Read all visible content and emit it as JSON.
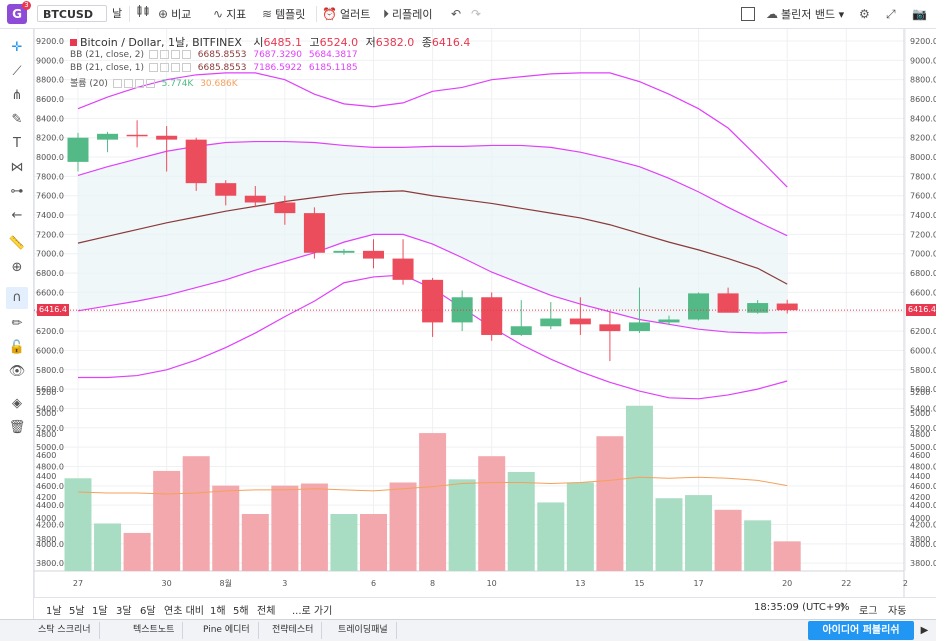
{
  "topbar": {
    "avatar_letter": "G",
    "avatar_badge": "3",
    "symbol": "BTCUSD",
    "interval": "날",
    "compare": "비교",
    "indicators": "지표",
    "templates": "템플릿",
    "alert": "얼러트",
    "replay": "리플레이",
    "bollinger": "볼린저 밴드"
  },
  "legend": {
    "main_title": "Bitcoin / Dollar, 1날, BITFINEX",
    "open_label": "시",
    "open": "6485.1",
    "high_label": "고",
    "high": "6524.0",
    "low_label": "저",
    "low": "6382.0",
    "close_label": "종",
    "close": "6416.4",
    "bb2_name": "BB (21, close, 2)",
    "bb2_basis": "6685.8553",
    "bb2_upper": "7687.3290",
    "bb2_lower": "5684.3817",
    "bb1_name": "BB (21, close, 1)",
    "bb1_basis": "6685.8553",
    "bb1_upper": "7186.5922",
    "bb1_lower": "6185.1185",
    "vol_name": "볼륨 (20)",
    "vol_value": "5.774K",
    "vol_ma": "30.686K"
  },
  "price_tag": "6416.4",
  "colors": {
    "up": "#53b987",
    "down": "#eb4d5c",
    "bb_outer": "#e040fb",
    "bb_basis": "#8b3a3a",
    "vol_ma": "#f5a05a",
    "accent": "#2196f3"
  },
  "chart_data": {
    "type": "candlestick",
    "price_axis": [
      "9200.0",
      "9000.0",
      "8800.0",
      "8600.0",
      "8400.0",
      "8200.0",
      "8000.0",
      "7800.0",
      "7600.0",
      "7400.0",
      "7200.0",
      "7000.0",
      "6800.0",
      "6600.0",
      "6400.0",
      "6200.0",
      "6000.0",
      "5800.0",
      "5600.0",
      "5400.0",
      "5200.0",
      "5000.0",
      "4800.0",
      "4600.0",
      "4400.0",
      "4200.0",
      "4000.0",
      "3800.0"
    ],
    "x_ticks": [
      {
        "label": "27",
        "i": 0
      },
      {
        "label": "30",
        "i": 3
      },
      {
        "label": "8월",
        "i": 5
      },
      {
        "label": "3",
        "i": 7
      },
      {
        "label": "6",
        "i": 10
      },
      {
        "label": "8",
        "i": 12
      },
      {
        "label": "10",
        "i": 14
      },
      {
        "label": "13",
        "i": 17
      },
      {
        "label": "15",
        "i": 19
      },
      {
        "label": "17",
        "i": 21
      },
      {
        "label": "20",
        "i": 24
      },
      {
        "label": "22",
        "i": 26
      },
      {
        "label": "2",
        "i": 28
      }
    ],
    "candles": [
      {
        "o": 7950,
        "h": 8250,
        "l": 7850,
        "c": 8200
      },
      {
        "o": 8180,
        "h": 8260,
        "l": 8050,
        "c": 8240
      },
      {
        "o": 8230,
        "h": 8380,
        "l": 8100,
        "c": 8220
      },
      {
        "o": 8220,
        "h": 8320,
        "l": 7850,
        "c": 8180
      },
      {
        "o": 8180,
        "h": 8200,
        "l": 7650,
        "c": 7730
      },
      {
        "o": 7730,
        "h": 7760,
        "l": 7500,
        "c": 7600
      },
      {
        "o": 7600,
        "h": 7700,
        "l": 7480,
        "c": 7530
      },
      {
        "o": 7530,
        "h": 7600,
        "l": 7300,
        "c": 7420
      },
      {
        "o": 7420,
        "h": 7480,
        "l": 6950,
        "c": 7010
      },
      {
        "o": 7010,
        "h": 7050,
        "l": 6990,
        "c": 7030
      },
      {
        "o": 7030,
        "h": 7150,
        "l": 6850,
        "c": 6950
      },
      {
        "o": 6950,
        "h": 7150,
        "l": 6680,
        "c": 6730
      },
      {
        "o": 6730,
        "h": 6750,
        "l": 6140,
        "c": 6290
      },
      {
        "o": 6290,
        "h": 6620,
        "l": 6200,
        "c": 6550
      },
      {
        "o": 6550,
        "h": 6600,
        "l": 6100,
        "c": 6160
      },
      {
        "o": 6160,
        "h": 6520,
        "l": 6150,
        "c": 6250
      },
      {
        "o": 6250,
        "h": 6500,
        "l": 6220,
        "c": 6330
      },
      {
        "o": 6330,
        "h": 6550,
        "l": 6160,
        "c": 6270
      },
      {
        "o": 6270,
        "h": 6400,
        "l": 5890,
        "c": 6200
      },
      {
        "o": 6200,
        "h": 6650,
        "l": 6180,
        "c": 6290
      },
      {
        "o": 6290,
        "h": 6360,
        "l": 6260,
        "c": 6320
      },
      {
        "o": 6320,
        "h": 6600,
        "l": 6310,
        "c": 6590
      },
      {
        "o": 6590,
        "h": 6650,
        "l": 6400,
        "c": 6390
      },
      {
        "o": 6390,
        "h": 6520,
        "l": 6380,
        "c": 6490
      },
      {
        "o": 6485,
        "h": 6524,
        "l": 6382,
        "c": 6416
      }
    ],
    "bb_upper2": [
      8500,
      8620,
      8720,
      8800,
      8850,
      8870,
      8870,
      8800,
      8650,
      8550,
      8520,
      8560,
      8680,
      8720,
      8800,
      8830,
      8860,
      8870,
      8870,
      8780,
      8650,
      8500,
      8300,
      8000,
      7690
    ],
    "bb_upper1": [
      7810,
      7900,
      7980,
      8060,
      8110,
      8150,
      8160,
      8160,
      8150,
      8120,
      8100,
      8100,
      8110,
      8110,
      8120,
      8120,
      8100,
      8050,
      7980,
      7900,
      7780,
      7640,
      7480,
      7330,
      7187
    ],
    "bb_basis": [
      7110,
      7180,
      7250,
      7320,
      7380,
      7440,
      7490,
      7540,
      7580,
      7620,
      7640,
      7650,
      7600,
      7560,
      7520,
      7470,
      7420,
      7370,
      7300,
      7210,
      7120,
      7040,
      6950,
      6850,
      6686
    ],
    "bb_lower1": [
      6410,
      6460,
      6510,
      6570,
      6650,
      6730,
      6830,
      6920,
      7010,
      7120,
      7200,
      7200,
      7100,
      6960,
      6810,
      6690,
      6570,
      6480,
      6400,
      6320,
      6270,
      6220,
      6190,
      6180,
      6185
    ],
    "bb_lower2": [
      5720,
      5720,
      5740,
      5800,
      5900,
      6030,
      6180,
      6350,
      6510,
      6700,
      6760,
      6780,
      6640,
      6440,
      6240,
      6060,
      5910,
      5780,
      5670,
      5580,
      5510,
      5500,
      5540,
      5600,
      5684
    ],
    "vol_axis": [
      "5200",
      "5000",
      "4800",
      "4600",
      "4400",
      "4200",
      "4000",
      "3800"
    ],
    "volume": [
      4380,
      3950,
      3860,
      4450,
      4590,
      4310,
      4040,
      4310,
      4330,
      4040,
      4040,
      4340,
      4810,
      4370,
      4590,
      4440,
      4150,
      4340,
      4780,
      5070,
      4190,
      4220,
      4080,
      3980,
      3780
    ],
    "vol_up": [
      1,
      1,
      0,
      0,
      0,
      0,
      0,
      0,
      0,
      1,
      0,
      0,
      0,
      1,
      0,
      1,
      1,
      1,
      0,
      1,
      1,
      1,
      0,
      1,
      0
    ],
    "vol_ma": [
      4250,
      4240,
      4240,
      4230,
      4240,
      4260,
      4270,
      4270,
      4280,
      4270,
      4260,
      4280,
      4300,
      4330,
      4340,
      4340,
      4330,
      4340,
      4360,
      4390,
      4380,
      4390,
      4380,
      4360,
      4310
    ]
  },
  "timeframes": [
    "1날",
    "5날",
    "1달",
    "3달",
    "6달",
    "연초 대비",
    "1해",
    "5해",
    "전체",
    "...로 가기"
  ],
  "status": {
    "clock": "18:35:09 (UTC+9)",
    "percent": "%",
    "log": "로그",
    "auto": "자동"
  },
  "footer": {
    "tabs": [
      "스탁 스크리너",
      "텍스트노트",
      "Pine 에디터",
      "전략테스터",
      "트레이딩패널"
    ],
    "publish": "아이디어 퍼블리쉬"
  }
}
